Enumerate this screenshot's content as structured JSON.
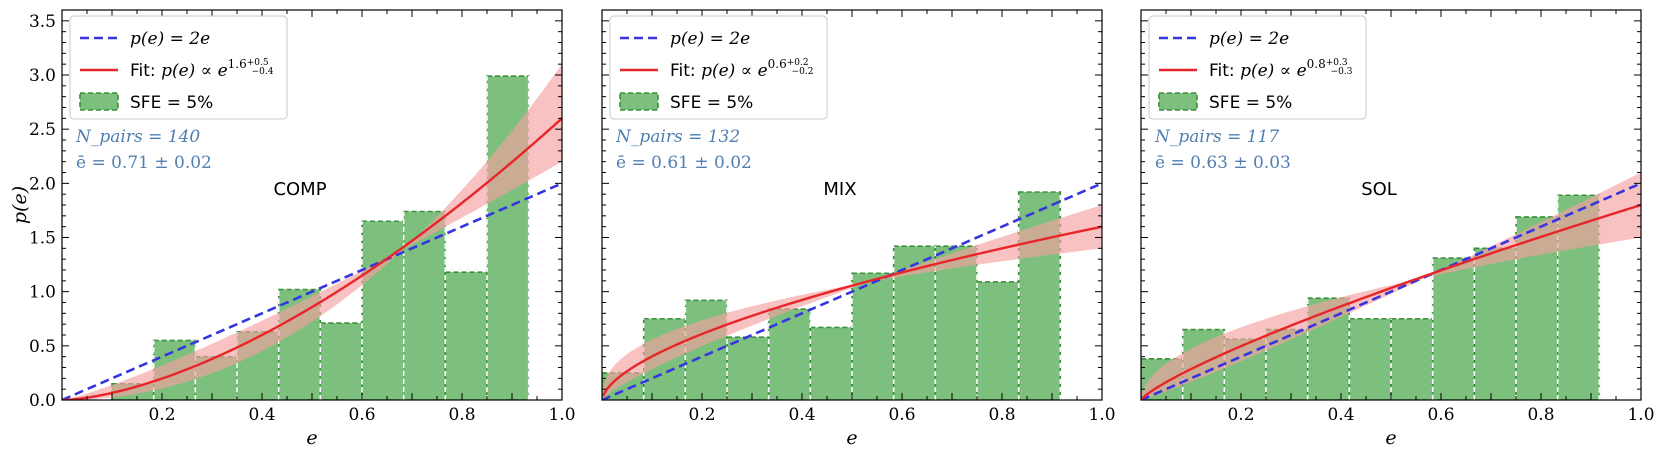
{
  "colors": {
    "model": "#3636e0",
    "fit": "#e8262a",
    "fit_band": "#f4a0a2",
    "hist_fill": "#66b566",
    "hist_edge": "#3c8f3c",
    "stat_text": "#4f7fb0"
  },
  "chart_data": [
    {
      "type": "bar",
      "label": "COMP",
      "xlabel": "e",
      "ylabel": "p(e)",
      "xlim": [
        0.0,
        1.0
      ],
      "ylim": [
        0.0,
        3.6
      ],
      "xticks": [
        "0.2",
        "0.4",
        "0.6",
        "0.8",
        "1.0"
      ],
      "yticks": [
        "0.0",
        "0.5",
        "1.0",
        "1.5",
        "2.0",
        "2.5",
        "3.0",
        "3.5"
      ],
      "legend_model": "p(e) = 2e",
      "legend_fit_prefix": "Fit:",
      "legend_fit_math": "p(e) ∝ e",
      "fit_exponent": "1.6",
      "fit_err_up": "+0.5",
      "fit_err_down": "−0.4",
      "legend_hist": "SFE = 5%",
      "stat_n": "N_pairs = 140",
      "stat_mean": "ē = 0.71 ± 0.02",
      "bin_edges": [
        0.1,
        0.1833,
        0.2667,
        0.35,
        0.4333,
        0.5167,
        0.6,
        0.6833,
        0.7667,
        0.85,
        0.9333
      ],
      "bin_values": [
        0.15,
        0.55,
        0.4,
        0.63,
        1.02,
        0.71,
        1.65,
        1.74,
        1.18,
        2.99
      ],
      "fit_alpha": 1.6,
      "fit_alpha_lo": 1.2,
      "fit_alpha_hi": 2.1,
      "legend_position": "top-left",
      "grid": false
    },
    {
      "type": "bar",
      "label": "MIX",
      "xlabel": "e",
      "ylabel": "",
      "xlim": [
        0.0,
        1.0
      ],
      "ylim": [
        0.0,
        3.6
      ],
      "xticks": [
        "0.2",
        "0.4",
        "0.6",
        "0.8",
        "1.0"
      ],
      "yticks": [],
      "legend_model": "p(e) = 2e",
      "legend_fit_prefix": "Fit:",
      "legend_fit_math": "p(e) ∝ e",
      "fit_exponent": "0.6",
      "fit_err_up": "+0.2",
      "fit_err_down": "−0.2",
      "legend_hist": "SFE = 5%",
      "stat_n": "N_pairs = 132",
      "stat_mean": "ē = 0.61 ± 0.02",
      "bin_edges": [
        0.0,
        0.0833,
        0.1667,
        0.25,
        0.3333,
        0.4167,
        0.5,
        0.5833,
        0.6667,
        0.75,
        0.8333,
        0.9167
      ],
      "bin_values": [
        0.25,
        0.75,
        0.92,
        0.58,
        0.84,
        0.67,
        1.17,
        1.42,
        1.42,
        1.09,
        1.92
      ],
      "fit_alpha": 0.6,
      "fit_alpha_lo": 0.4,
      "fit_alpha_hi": 0.8,
      "legend_position": "top-left",
      "grid": false
    },
    {
      "type": "bar",
      "label": "SOL",
      "xlabel": "e",
      "ylabel": "",
      "xlim": [
        0.0,
        1.0
      ],
      "ylim": [
        0.0,
        3.6
      ],
      "xticks": [
        "0.2",
        "0.4",
        "0.6",
        "0.8",
        "1.0"
      ],
      "yticks": [],
      "legend_model": "p(e) = 2e",
      "legend_fit_prefix": "Fit:",
      "legend_fit_math": "p(e) ∝ e",
      "fit_exponent": "0.8",
      "fit_err_up": "+0.3",
      "fit_err_down": "−0.3",
      "legend_hist": "SFE = 5%",
      "stat_n": "N_pairs = 117",
      "stat_mean": "ē = 0.63 ± 0.03",
      "bin_edges": [
        0.0,
        0.0833,
        0.1667,
        0.25,
        0.3333,
        0.4167,
        0.5,
        0.5833,
        0.6667,
        0.75,
        0.8333,
        0.9167
      ],
      "bin_values": [
        0.38,
        0.65,
        0.56,
        0.65,
        0.94,
        0.75,
        0.75,
        1.31,
        1.4,
        1.69,
        1.89
      ],
      "fit_alpha": 0.8,
      "fit_alpha_lo": 0.5,
      "fit_alpha_hi": 1.1,
      "legend_position": "top-left",
      "grid": false
    }
  ]
}
